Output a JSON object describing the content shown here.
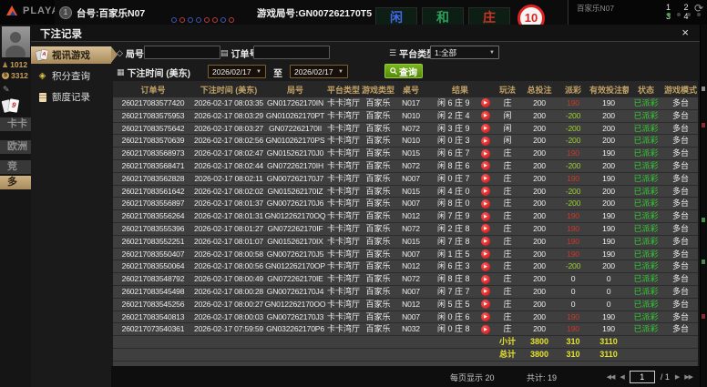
{
  "colors": {
    "accent_tan": "#b99a64",
    "selected_menu_gradient": [
      "#d8bf95",
      "#a78a5b"
    ],
    "search_button_green": "#6aa816",
    "payout_win_red": "#c6392b",
    "payout_lose_green": "#9ad32e",
    "status_paid_green": "#35cb35",
    "summary_yellow": "#e4e030",
    "header_gold": "#c2a165",
    "row_gray": "#3f3f3f"
  },
  "top_bar": {
    "logo": "PLAYACE",
    "table_no": "台号:百家乐N07",
    "round_no": "游戏局号:GN007262170T5",
    "tiles": [
      {
        "label": "闲"
      },
      {
        "label": "和"
      },
      {
        "label": "庄"
      }
    ],
    "countdown": "10",
    "room": "百家乐N07",
    "seats": "1 2 3 4"
  },
  "sidebar_background": {
    "stat_gold": "1012",
    "stat_money": "3312",
    "card_badge": "9",
    "tabs": [
      {
        "label": "卡卡"
      },
      {
        "label": "欧洲"
      },
      {
        "label": "竞"
      },
      {
        "label": "多"
      }
    ]
  },
  "modal": {
    "title": "下注记录",
    "close": "×",
    "menu": [
      {
        "label": "视讯游戏"
      },
      {
        "label": "积分查询"
      },
      {
        "label": "额度记录"
      }
    ],
    "filters": {
      "round": {
        "label": "局号",
        "value": ""
      },
      "order": {
        "label": "订单号",
        "value": ""
      },
      "platform": {
        "label": "平台类型",
        "value": "1:全部"
      },
      "time": {
        "label": "下注时间 (美东)",
        "from": "2026/02/17",
        "to_label": "至",
        "to": "2026/02/17"
      },
      "search": "查询"
    },
    "table": {
      "headers": [
        "订单号",
        "下注时间 (美东)",
        "局号",
        "平台类型",
        "游戏类型",
        "桌号",
        "结果",
        "玩法",
        "总投注",
        "派彩",
        "有效投注额",
        "状态",
        "游戏模式"
      ],
      "rows": [
        {
          "order": "260217083577420",
          "time": "2026-02-17 08:03:35",
          "round": "GN017262170IN",
          "platform": "卡卡湾厅",
          "game": "百家乐",
          "table": "N017",
          "result": "闲 6 庄 9",
          "bet": "庄",
          "total": "200",
          "payout": "190",
          "outcome": "win",
          "valid": "190",
          "status": "已派彩",
          "mode": "多台"
        },
        {
          "order": "260217083575953",
          "time": "2026-02-17 08:03:29",
          "round": "GN010262170PT",
          "platform": "卡卡湾厅",
          "game": "百家乐",
          "table": "N010",
          "result": "闲 2 庄 4",
          "bet": "闲",
          "total": "200",
          "payout": "-200",
          "outcome": "lose",
          "valid": "200",
          "status": "已派彩",
          "mode": "多台"
        },
        {
          "order": "260217083575642",
          "time": "2026-02-17 08:03:27",
          "round": "GN072262170II",
          "platform": "卡卡湾厅",
          "game": "百家乐",
          "table": "N072",
          "result": "闲 3 庄 9",
          "bet": "闲",
          "total": "200",
          "payout": "-200",
          "outcome": "lose",
          "valid": "200",
          "status": "已派彩",
          "mode": "多台"
        },
        {
          "order": "260217083570639",
          "time": "2026-02-17 08:02:56",
          "round": "GN010262170PS",
          "platform": "卡卡湾厅",
          "game": "百家乐",
          "table": "N010",
          "result": "闲 0 庄 3",
          "bet": "闲",
          "total": "200",
          "payout": "-200",
          "outcome": "lose",
          "valid": "200",
          "status": "已派彩",
          "mode": "多台"
        },
        {
          "order": "260217083568973",
          "time": "2026-02-17 08:02:47",
          "round": "GN015262170J0",
          "platform": "卡卡湾厅",
          "game": "百家乐",
          "table": "N015",
          "result": "闲 6 庄 7",
          "bet": "庄",
          "total": "200",
          "payout": "190",
          "outcome": "win",
          "valid": "190",
          "status": "已派彩",
          "mode": "多台"
        },
        {
          "order": "260217083568471",
          "time": "2026-02-17 08:02:44",
          "round": "GN072262170IH",
          "platform": "卡卡湾厅",
          "game": "百家乐",
          "table": "N072",
          "result": "闲 8 庄 6",
          "bet": "庄",
          "total": "200",
          "payout": "-200",
          "outcome": "lose",
          "valid": "200",
          "status": "已派彩",
          "mode": "多台"
        },
        {
          "order": "260217083562828",
          "time": "2026-02-17 08:02:11",
          "round": "GN007262170J7",
          "platform": "卡卡湾厅",
          "game": "百家乐",
          "table": "N007",
          "result": "闲 0 庄 7",
          "bet": "庄",
          "total": "200",
          "payout": "190",
          "outcome": "win",
          "valid": "190",
          "status": "已派彩",
          "mode": "多台"
        },
        {
          "order": "260217083561642",
          "time": "2026-02-17 08:02:02",
          "round": "GN015262170IZ",
          "platform": "卡卡湾厅",
          "game": "百家乐",
          "table": "N015",
          "result": "闲 4 庄 0",
          "bet": "庄",
          "total": "200",
          "payout": "-200",
          "outcome": "lose",
          "valid": "200",
          "status": "已派彩",
          "mode": "多台"
        },
        {
          "order": "260217083556897",
          "time": "2026-02-17 08:01:37",
          "round": "GN007262170J6",
          "platform": "卡卡湾厅",
          "game": "百家乐",
          "table": "N007",
          "result": "闲 8 庄 0",
          "bet": "庄",
          "total": "200",
          "payout": "-200",
          "outcome": "lose",
          "valid": "200",
          "status": "已派彩",
          "mode": "多台"
        },
        {
          "order": "260217083556264",
          "time": "2026-02-17 08:01:31",
          "round": "GN012262170OQ",
          "platform": "卡卡湾厅",
          "game": "百家乐",
          "table": "N012",
          "result": "闲 7 庄 9",
          "bet": "庄",
          "total": "200",
          "payout": "190",
          "outcome": "win",
          "valid": "190",
          "status": "已派彩",
          "mode": "多台"
        },
        {
          "order": "260217083555396",
          "time": "2026-02-17 08:01:27",
          "round": "GN072262170IF",
          "platform": "卡卡湾厅",
          "game": "百家乐",
          "table": "N072",
          "result": "闲 2 庄 8",
          "bet": "庄",
          "total": "200",
          "payout": "190",
          "outcome": "win",
          "valid": "190",
          "status": "已派彩",
          "mode": "多台"
        },
        {
          "order": "260217083552251",
          "time": "2026-02-17 08:01:07",
          "round": "GN015262170IX",
          "platform": "卡卡湾厅",
          "game": "百家乐",
          "table": "N015",
          "result": "闲 7 庄 8",
          "bet": "庄",
          "total": "200",
          "payout": "190",
          "outcome": "win",
          "valid": "190",
          "status": "已派彩",
          "mode": "多台"
        },
        {
          "order": "260217083550407",
          "time": "2026-02-17 08:00:58",
          "round": "GN007262170J5",
          "platform": "卡卡湾厅",
          "game": "百家乐",
          "table": "N007",
          "result": "闲 1 庄 5",
          "bet": "庄",
          "total": "200",
          "payout": "190",
          "outcome": "win",
          "valid": "190",
          "status": "已派彩",
          "mode": "多台"
        },
        {
          "order": "260217083550064",
          "time": "2026-02-17 08:00:56",
          "round": "GN012262170OP",
          "platform": "卡卡湾厅",
          "game": "百家乐",
          "table": "N012",
          "result": "闲 6 庄 3",
          "bet": "庄",
          "total": "200",
          "payout": "-200",
          "outcome": "lose",
          "valid": "200",
          "status": "已派彩",
          "mode": "多台"
        },
        {
          "order": "260217083548792",
          "time": "2026-02-17 08:00:49",
          "round": "GN072262170IE",
          "platform": "卡卡湾厅",
          "game": "百家乐",
          "table": "N072",
          "result": "闲 8 庄 8",
          "bet": "庄",
          "total": "200",
          "payout": "0",
          "outcome": "tie",
          "valid": "0",
          "status": "已派彩",
          "mode": "多台"
        },
        {
          "order": "260217083545498",
          "time": "2026-02-17 08:00:28",
          "round": "GN007262170J4",
          "platform": "卡卡湾厅",
          "game": "百家乐",
          "table": "N007",
          "result": "闲 7 庄 7",
          "bet": "庄",
          "total": "200",
          "payout": "0",
          "outcome": "tie",
          "valid": "0",
          "status": "已派彩",
          "mode": "多台"
        },
        {
          "order": "260217083545256",
          "time": "2026-02-17 08:00:27",
          "round": "GN012262170OO",
          "platform": "卡卡湾厅",
          "game": "百家乐",
          "table": "N012",
          "result": "闲 5 庄 5",
          "bet": "庄",
          "total": "200",
          "payout": "0",
          "outcome": "tie",
          "valid": "0",
          "status": "已派彩",
          "mode": "多台"
        },
        {
          "order": "260217083540813",
          "time": "2026-02-17 08:00:03",
          "round": "GN007262170J3",
          "platform": "卡卡湾厅",
          "game": "百家乐",
          "table": "N007",
          "result": "闲 0 庄 6",
          "bet": "庄",
          "total": "200",
          "payout": "190",
          "outcome": "win",
          "valid": "190",
          "status": "已派彩",
          "mode": "多台"
        },
        {
          "order": "260217073540361",
          "time": "2026-02-17 07:59:59",
          "round": "GN032262170P6",
          "platform": "卡卡湾厅",
          "game": "百家乐",
          "table": "N032",
          "result": "闲 0 庄 8",
          "bet": "庄",
          "total": "200",
          "payout": "190",
          "outcome": "win",
          "valid": "190",
          "status": "已派彩",
          "mode": "多台"
        }
      ],
      "subtotal": {
        "label": "小计",
        "total": "3800",
        "payout": "310",
        "valid": "3110"
      },
      "grand_total": {
        "label": "总计",
        "total": "3800",
        "payout": "310",
        "valid": "3110"
      }
    },
    "footer": {
      "per_page": "每页显示 20",
      "total": "共计: 19",
      "page": "1",
      "of": "/ 1"
    }
  }
}
